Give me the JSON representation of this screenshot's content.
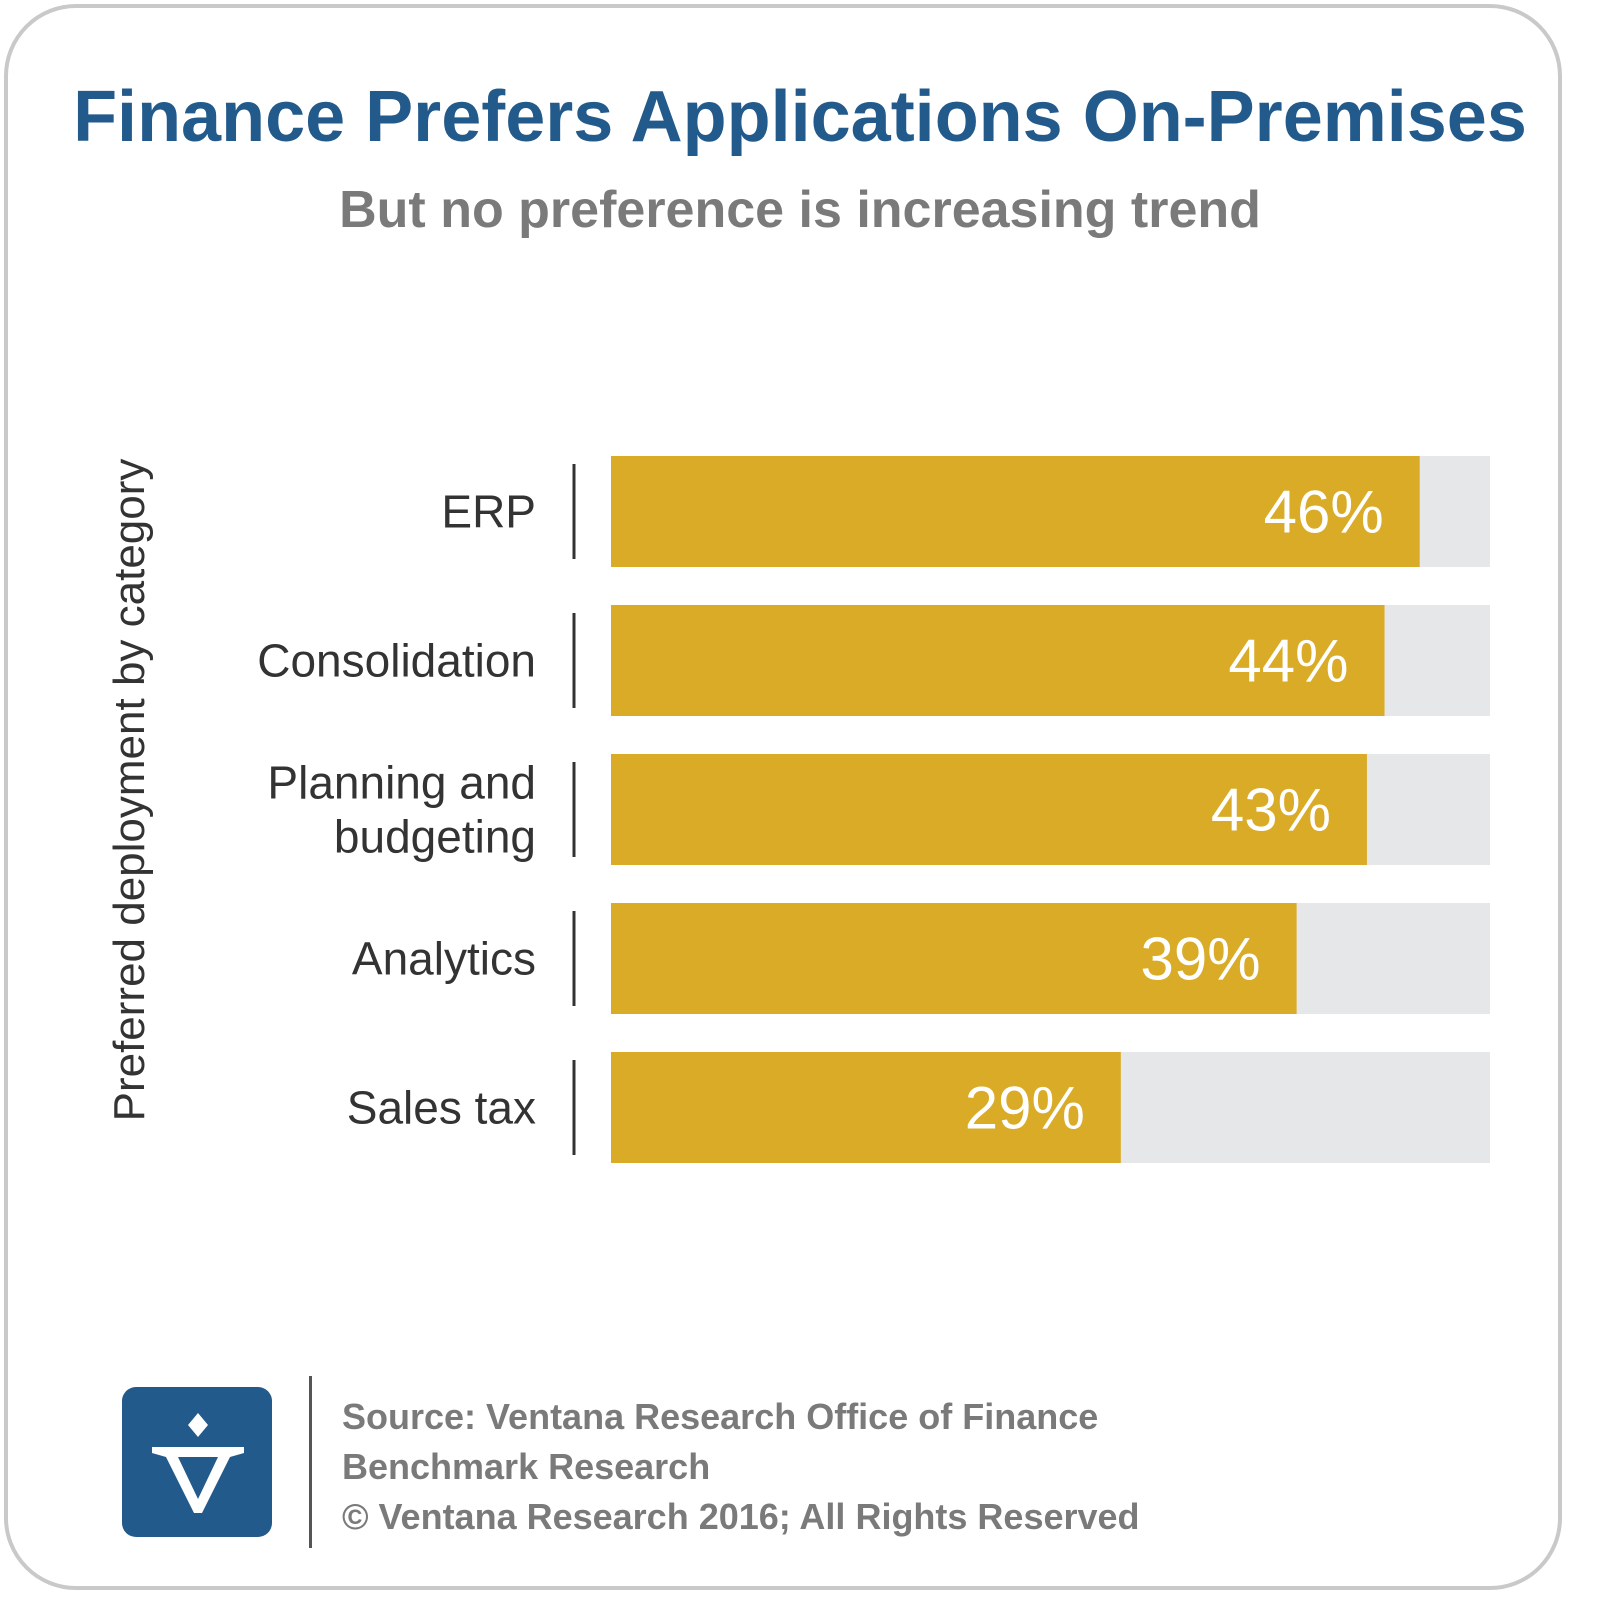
{
  "header": {
    "title": "Finance Prefers Applications On-Premises",
    "subtitle": "But no preference is increasing trend"
  },
  "chart_data": {
    "type": "bar",
    "orientation": "horizontal",
    "title": "Finance Prefers Applications On-Premises",
    "subtitle": "But no preference is increasing trend",
    "ylabel": "Preferred deployment by category",
    "xlabel": "",
    "categories": [
      "ERP",
      "Consolidation",
      "Planning and budgeting",
      "Analytics",
      "Sales tax"
    ],
    "category_lines": [
      [
        "ERP"
      ],
      [
        "Consolidation"
      ],
      [
        "Planning and",
        "budgeting"
      ],
      [
        "Analytics"
      ],
      [
        "Sales tax"
      ]
    ],
    "values": [
      46,
      44,
      43,
      39,
      29
    ],
    "value_labels": [
      "46%",
      "44%",
      "43%",
      "39%",
      "29%"
    ],
    "xlim": [
      0,
      50
    ],
    "bar_color": "#d9ab26",
    "track_color": "#e6e7e8",
    "value_label_color": "#ffffff",
    "grid": false,
    "legend": "none"
  },
  "footer": {
    "source_line1": "Source: Ventana Research Office of Finance",
    "source_line2": "Benchmark Research",
    "copyright": "© Ventana Research 2016; All Rights Reserved",
    "logo_icon": "ventana-v-logo",
    "logo_color": "#235a8c"
  }
}
